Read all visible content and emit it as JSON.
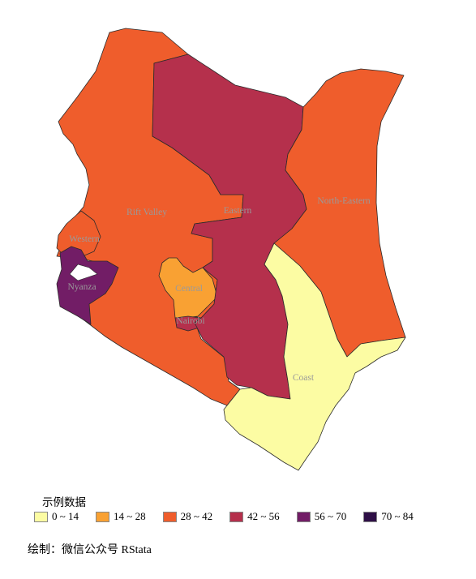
{
  "legend": {
    "title": "示例数据",
    "items": [
      {
        "label": "0 ~ 14",
        "color": "#fcfca3"
      },
      {
        "label": "14 ~ 28",
        "color": "#f9a133"
      },
      {
        "label": "28 ~ 42",
        "color": "#ef5d2c"
      },
      {
        "label": "42 ~ 56",
        "color": "#b5304c"
      },
      {
        "label": "56 ~ 70",
        "color": "#721d66"
      },
      {
        "label": "70 ~ 84",
        "color": "#2e0f46"
      }
    ]
  },
  "regions": [
    {
      "name": "Rift Valley",
      "color": "#ef5d2c"
    },
    {
      "name": "Western",
      "color": "#ef5d2c"
    },
    {
      "name": "Nyanza",
      "color": "#721d66"
    },
    {
      "name": "Central",
      "color": "#f9a133"
    },
    {
      "name": "Nairobi",
      "color": "#b5304c"
    },
    {
      "name": "Eastern",
      "color": "#b5304c"
    },
    {
      "name": "North-Eastern",
      "color": "#ef5d2c"
    },
    {
      "name": "Coast",
      "color": "#fcfca3"
    }
  ],
  "caption": "绘制：微信公众号 RStata"
}
